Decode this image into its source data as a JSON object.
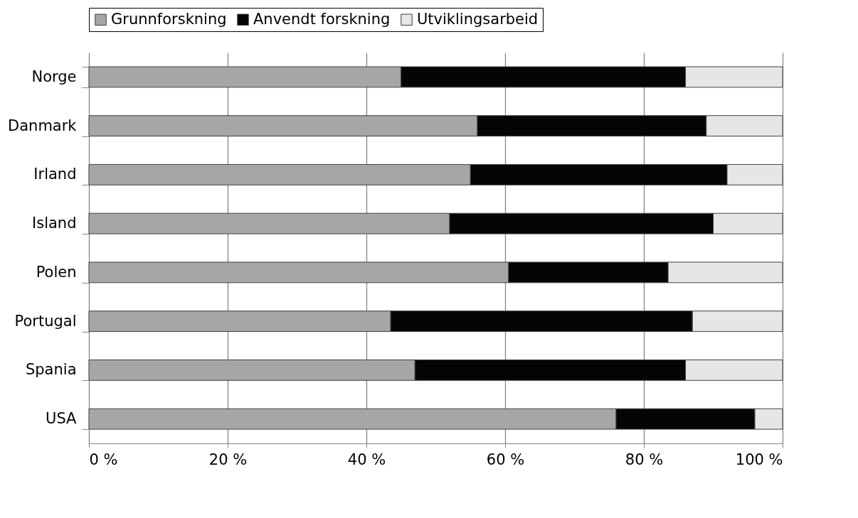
{
  "chart_data": {
    "type": "bar",
    "orientation": "horizontal",
    "stacked": true,
    "categories": [
      "Norge",
      "Danmark",
      "Irland",
      "Island",
      "Polen",
      "Portugal",
      "Spania",
      "USA"
    ],
    "series": [
      {
        "name": "Grunnforskning",
        "color": "#a6a6a6",
        "values": [
          45,
          56,
          55,
          52,
          60.5,
          43.5,
          47,
          76
        ]
      },
      {
        "name": "Anvendt forskning",
        "color": "#050505",
        "values": [
          41,
          33,
          37,
          38,
          23,
          43.5,
          39,
          20
        ]
      },
      {
        "name": "Utviklingsarbeid",
        "color": "#e6e6e6",
        "values": [
          14,
          11,
          8,
          10,
          16.5,
          13,
          14,
          4
        ]
      }
    ],
    "xlim": [
      0,
      100
    ],
    "xticks": [
      {
        "value": 0,
        "label": "0 %"
      },
      {
        "value": 20,
        "label": "20 %"
      },
      {
        "value": 40,
        "label": "40 %"
      },
      {
        "value": 60,
        "label": "60 %"
      },
      {
        "value": 80,
        "label": "80 %"
      },
      {
        "value": 100,
        "label": "100 %"
      }
    ],
    "grid": "x",
    "legend": "top"
  }
}
